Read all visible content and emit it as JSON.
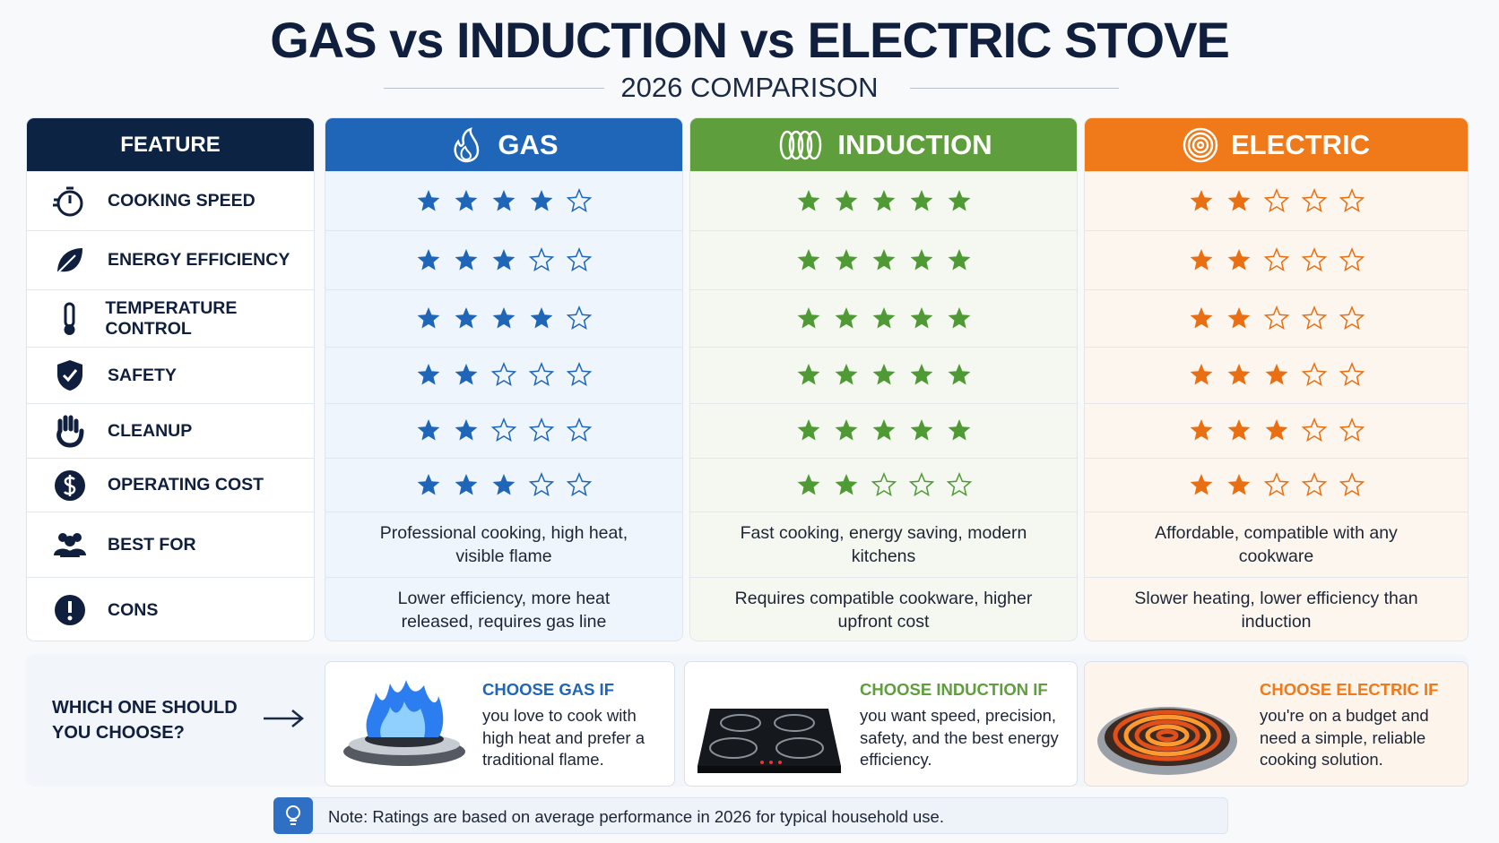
{
  "header": {
    "title": "GAS vs INDUCTION vs ELECTRIC STOVE",
    "subtitle": "2026 COMPARISON"
  },
  "table": {
    "feature_header": "FEATURE",
    "feature_header_color": "#0d2344",
    "rating_max": 5,
    "columns": [
      {
        "name": "GAS",
        "color": "#1f66b8",
        "tint": "#eef5fc",
        "star_color": "#1f66b8"
      },
      {
        "name": "INDUCTION",
        "color": "#5e9e3c",
        "tint": "#f4f8f0",
        "star_color": "#4f9a35"
      },
      {
        "name": "ELECTRIC",
        "color": "#f07a1a",
        "tint": "#fdf6ef",
        "star_color": "#ea6f12"
      }
    ],
    "rows": [
      {
        "feature": "COOKING SPEED",
        "ratings": [
          4,
          5,
          2
        ]
      },
      {
        "feature": "ENERGY EFFICIENCY",
        "ratings": [
          3,
          5,
          2
        ]
      },
      {
        "feature": "TEMPERATURE CONTROL",
        "ratings": [
          4,
          5,
          2
        ]
      },
      {
        "feature": "SAFETY",
        "ratings": [
          2,
          5,
          3
        ]
      },
      {
        "feature": "CLEANUP",
        "ratings": [
          2,
          5,
          3
        ]
      },
      {
        "feature": "OPERATING COST",
        "ratings": [
          3,
          2,
          2
        ]
      }
    ],
    "text_rows": [
      {
        "feature": "BEST FOR",
        "cells": [
          "Professional cooking, high heat, visible flame",
          "Fast cooking, energy saving, modern kitchens",
          "Affordable, compatible with any cookware"
        ]
      },
      {
        "feature": "CONS",
        "cells": [
          "Lower efficiency, more heat released, requires gas line",
          "Requires compatible cookware, higher upfront cost",
          "Slower heating, lower efficiency than induction"
        ]
      }
    ]
  },
  "choose": {
    "question": "WHICH ONE SHOULD YOU CHOOSE?",
    "options": [
      {
        "title": "CHOOSE GAS IF",
        "text": "you love to cook with high heat and prefer a traditional flame."
      },
      {
        "title": "CHOOSE INDUCTION IF",
        "text": "you want speed, precision, safety, and the best energy efficiency."
      },
      {
        "title": "CHOOSE ELECTRIC IF",
        "text": "you're on a budget and need a simple, reliable cooking solution."
      }
    ]
  },
  "note": "Note: Ratings are based on average performance in 2026 for typical household use."
}
